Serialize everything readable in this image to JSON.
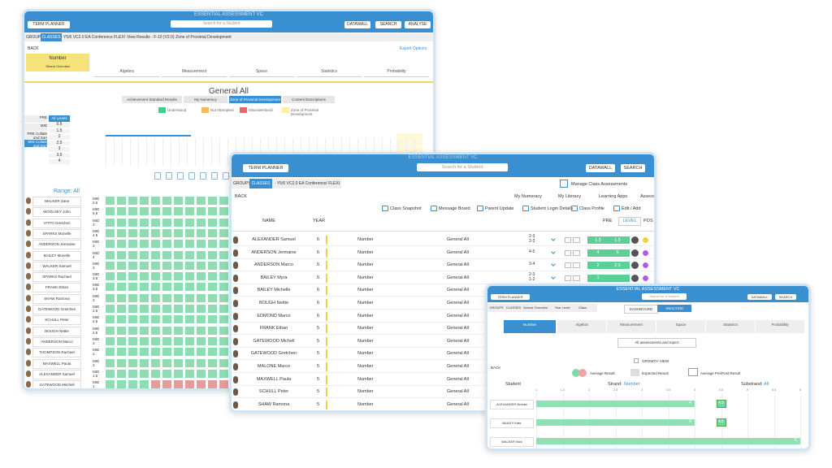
{
  "back": {
    "app_title": "ESSENTIAL ASSESSMENT VC",
    "term_planner": "TERM PLANNER",
    "search_placeholder": "Search for a Student",
    "toolbar": [
      "DATAWALL",
      "SEARCH",
      "ANALYSE"
    ],
    "breadcrumb": [
      "GROUPS",
      "CLASSES",
      "Y5/6 VC2.0 EA Conference FLEXI",
      "View Results - F-10 (V2.0)",
      "Zone of Proximal Development"
    ],
    "back": "BACK",
    "export": "Export Options",
    "strand": "Number",
    "strand_sub": "Strand Overview",
    "strand_tabs": [
      "Algebra",
      "Measurement",
      "Space",
      "Statistics",
      "Probability"
    ],
    "heading": "General All",
    "views": [
      "Achievement Standard Results",
      "My Numeracy",
      "Zone of Proximal Development",
      "Content Descriptions"
    ],
    "legend": [
      {
        "label": "Understood",
        "color": "#3ccf8e"
      },
      {
        "label": "Not Attempted",
        "color": "#f4b860"
      },
      {
        "label": "Misunderstood",
        "color": "#e8686a"
      },
      {
        "label": "Zone of Proximal Development",
        "color": "#f9ef9c"
      }
    ],
    "levels_left": [
      "PRE",
      "MID",
      "PRE Collate and Sort",
      "MID Collate and Sort"
    ],
    "levels_header": "All Levels",
    "levels": [
      "0.5",
      "1.5",
      "2",
      "2.5",
      "3",
      "3.5",
      "4"
    ],
    "range": "Range: All",
    "students": [
      {
        "name": "WALKER Zane",
        "tag": "MID",
        "level": "0.5"
      },
      {
        "name": "WOOLSEY John",
        "tag": "MID",
        "level": "5.5"
      },
      {
        "name": "VITTO Gretchen",
        "tag": "MID",
        "level": "3"
      },
      {
        "name": "SPARKS Monelle",
        "tag": "MID",
        "level": "4.5"
      },
      {
        "name": "ANDERSON Jermaine",
        "tag": "MID",
        "level": "3"
      },
      {
        "name": "BAILEY Monelle",
        "tag": "MID",
        "level": "4"
      },
      {
        "name": "WALKER Samuel",
        "tag": "MID",
        "level": "3"
      },
      {
        "name": "SPARKS Rachael",
        "tag": "MID",
        "level": "3.5"
      },
      {
        "name": "FRANK Ethan",
        "tag": "MID",
        "level": "3.5"
      },
      {
        "name": "SHAW Ramona",
        "tag": "MID",
        "level": "3"
      },
      {
        "name": "GATEWOOD Gretchen",
        "tag": "MID",
        "level": "2.5"
      },
      {
        "name": "SCHULL Peter",
        "tag": "MID",
        "level": "2.5"
      },
      {
        "name": "BOUGH Nettie",
        "tag": "MID",
        "level": "2.5"
      },
      {
        "name": "ANDERSON Marco",
        "tag": "MID",
        "level": "3"
      },
      {
        "name": "THOMPSON Rachael",
        "tag": "MID",
        "level": "2"
      },
      {
        "name": "MAXWELL Paula",
        "tag": "MID",
        "level": "2"
      },
      {
        "name": "ALEXANDER Samuel",
        "tag": "MID",
        "level": "1.5"
      },
      {
        "name": "GATEWOOD Mitchell",
        "tag": "MID",
        "level": "1"
      }
    ]
  },
  "middle": {
    "app_title": "ESSENTIAL ASSESSMENT VC",
    "term_planner": "TERM PLANNER",
    "search_placeholder": "Search for a Student",
    "toolbar": [
      "DATAWALL",
      "SEARCH"
    ],
    "breadcrumb": [
      "GROUPS",
      "CLASSES",
      "- Y5/6 VC2.0 EA Conference/ FLEXI"
    ],
    "manage": "Manage Class Assessments",
    "back": "BACK",
    "nav": [
      "My Numeracy",
      "My Literacy",
      "Learning Apps",
      "Assess"
    ],
    "actions": [
      "Class Snapshot",
      "Message Board",
      "Parent Update",
      "Student Login Details",
      "Class Profile",
      "Edit / Add"
    ],
    "columns": {
      "name": "NAME",
      "year": "YEAR",
      "pre": "PRE",
      "level": "LEVEL",
      "pos": "POS"
    },
    "rows": [
      {
        "name": "ALEXANDER Samuel",
        "year": "6",
        "strand": "Number",
        "topic": "General All",
        "range": "2-3",
        "range2": "2-3",
        "pre": "1.5",
        "post": "1.5",
        "status_color": "#f2d13c"
      },
      {
        "name": "ANDERSON Jermaine",
        "year": "6",
        "strand": "Number",
        "topic": "General All",
        "range": "4-5",
        "pre": "4",
        "post": "5",
        "status_color": "#b05ee0"
      },
      {
        "name": "ANDERSON Marco",
        "year": "6",
        "strand": "Number",
        "topic": "General All",
        "range": "3-4",
        "pre": "2",
        "post": "2.5",
        "status_color": "#b05ee0"
      },
      {
        "name": "BAILEY Myra",
        "year": "6",
        "strand": "Number",
        "topic": "General All",
        "range": "2-3",
        "range2": "1-2",
        "pre": "1",
        "status_color": "#b05ee0"
      },
      {
        "name": "BAILEY Michelle",
        "year": "6",
        "strand": "Number",
        "topic": "General All"
      },
      {
        "name": "BOUGH Nettie",
        "year": "6",
        "strand": "Number",
        "topic": "General All"
      },
      {
        "name": "EDMOND Marco",
        "year": "6",
        "strand": "Number",
        "topic": "General All"
      },
      {
        "name": "FRANK Ethan",
        "year": "5",
        "strand": "Number",
        "topic": "General All"
      },
      {
        "name": "GATEWOOD Michell",
        "year": "5",
        "strand": "Number",
        "topic": "General All"
      },
      {
        "name": "GATEWOOD Gretchen",
        "year": "5",
        "strand": "Number",
        "topic": "General All"
      },
      {
        "name": "MALONE Marco",
        "year": "5",
        "strand": "Number",
        "topic": "General All"
      },
      {
        "name": "MAXWELL Paula",
        "year": "5",
        "strand": "Number",
        "topic": "General All"
      },
      {
        "name": "SCHULL Peter",
        "year": "5",
        "strand": "Number",
        "topic": "General All"
      },
      {
        "name": "SHAW Ramona",
        "year": "5",
        "strand": "Number",
        "topic": "General All"
      }
    ]
  },
  "front": {
    "app_title": "ESSENTIAL ASSESSMENT VC",
    "term_planner": "TERM PLANNER",
    "search_placeholder": "Search for a Student",
    "toolbar": [
      "DATAWALL",
      "SEARCH"
    ],
    "breadcrumb": [
      "GROUPS",
      "CLASSES",
      "School Overview",
      "Year Level",
      "Class"
    ],
    "modes": [
      "DASHBOARD",
      "ANALYSIS"
    ],
    "strand_tabs": [
      "Number",
      "Algebra",
      "Measurement",
      "Space",
      "Statistics",
      "Probability"
    ],
    "dropdown": "All assessments and topics",
    "growth": "GROWTH VIEW",
    "back": "BACK",
    "legend": [
      "Average Result",
      "Expected Result",
      "Average Pre/Post Result"
    ],
    "student_header": "Student",
    "strand_label": "Strand:",
    "strand_value": "Number",
    "substrand_label": "Substrand:",
    "substrand_value": "All",
    "axis": {
      "lim": [
        1,
        6
      ],
      "ticks": [
        1,
        1.5,
        2,
        2.5,
        3,
        3.5,
        4,
        4.5,
        5,
        5.5,
        6
      ]
    },
    "rows": [
      {
        "name": "ALEXANDER Brooke",
        "avg": 4,
        "pre_post": 4.5
      },
      {
        "name": "BAILEY Kate",
        "avg": 4,
        "pre_post": 4.5
      },
      {
        "name": "WALKER Nick",
        "avg": 6
      }
    ]
  }
}
